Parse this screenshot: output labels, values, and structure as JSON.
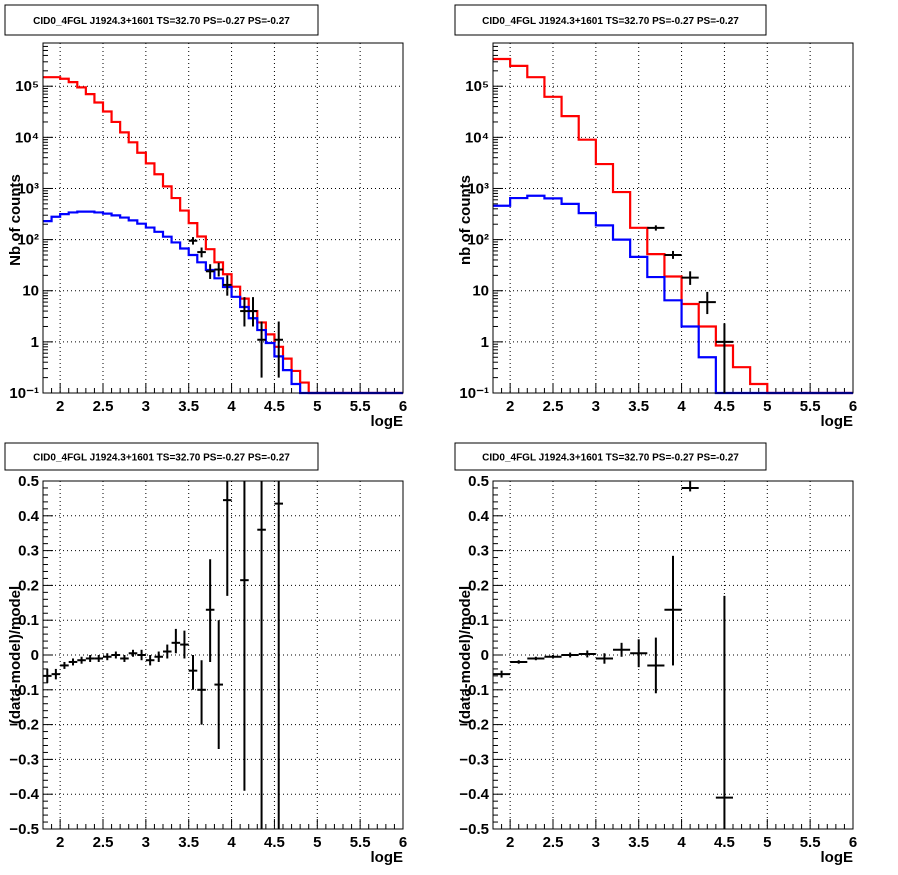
{
  "chart_data": [
    {
      "type": "line",
      "title": "CID0_4FGL J1924.3+1601 TS=32.70 PS=-0.27 PS=-0.27",
      "xlabel": "logE",
      "ylabel": "Nb of counts",
      "xlim": [
        1.8,
        6
      ],
      "ylim": [
        0.1,
        700000
      ],
      "log_y": true,
      "grid": true,
      "x_ticks": [
        2,
        2.5,
        3,
        3.5,
        4,
        4.5,
        5,
        5.5,
        6
      ],
      "x_tick_labels": [
        "2",
        "2.5",
        "3",
        "3.5",
        "4",
        "4.5",
        "5",
        "5.5",
        "6"
      ],
      "y_ticks": [
        0.1,
        1,
        10,
        100,
        1000,
        10000,
        100000
      ],
      "y_tick_labels": [
        "10⁻¹",
        "1",
        "10",
        "10²",
        "10³",
        "10⁴",
        "10⁵"
      ],
      "bin_width": 0.1,
      "x": [
        1.8,
        1.9,
        2.0,
        2.1,
        2.2,
        2.3,
        2.4,
        2.5,
        2.6,
        2.7,
        2.8,
        2.9,
        3.0,
        3.1,
        3.2,
        3.3,
        3.4,
        3.5,
        3.6,
        3.7,
        3.8,
        3.9,
        4.0,
        4.1,
        4.2,
        4.3,
        4.4,
        4.5,
        4.6,
        4.7,
        4.8,
        4.9,
        5.0,
        5.1,
        5.2,
        5.3,
        5.4,
        5.5,
        5.6,
        5.7,
        5.8,
        5.9
      ],
      "series": [
        {
          "color": "#ff0000",
          "style": "step",
          "values": [
            150000,
            150000,
            140000,
            120000,
            95000,
            70000,
            48000,
            32000,
            20000,
            12500,
            8000,
            5000,
            3100,
            1900,
            1100,
            650,
            370,
            210,
            115,
            65,
            36,
            21,
            12,
            7,
            4,
            2.4,
            1.4,
            0.8,
            0.47,
            0.27,
            0.16,
            0.1,
            0,
            0,
            0,
            0,
            0,
            0,
            0,
            0,
            0,
            0
          ]
        },
        {
          "color": "#0000ff",
          "style": "step",
          "values": [
            230,
            280,
            315,
            340,
            352,
            352,
            340,
            322,
            298,
            270,
            238,
            205,
            172,
            142,
            114,
            88,
            67,
            50,
            36,
            25.5,
            17.5,
            11.8,
            7.6,
            4.8,
            2.9,
            1.7,
            0.95,
            0.52,
            0.28,
            0.15,
            0.08,
            0,
            0,
            0,
            0,
            0,
            0,
            0,
            0,
            0,
            0,
            0
          ]
        },
        {
          "color": "#000000",
          "style": "points",
          "points": [
            {
              "x": 3.55,
              "y": 95,
              "ylo": 80,
              "yhi": 112,
              "xw": 0.05
            },
            {
              "x": 3.65,
              "y": 57,
              "ylo": 45,
              "yhi": 70,
              "xw": 0.05
            },
            {
              "x": 3.75,
              "y": 24,
              "ylo": 17,
              "yhi": 33,
              "xw": 0.05
            },
            {
              "x": 3.85,
              "y": 26,
              "ylo": 19,
              "yhi": 35,
              "xw": 0.05
            },
            {
              "x": 3.95,
              "y": 13,
              "ylo": 8,
              "yhi": 20,
              "xw": 0.05
            },
            {
              "x": 4.15,
              "y": 4,
              "ylo": 2,
              "yhi": 7.5,
              "xw": 0.05
            },
            {
              "x": 4.25,
              "y": 4,
              "ylo": 2,
              "yhi": 7.5,
              "xw": 0.05
            },
            {
              "x": 4.35,
              "y": 1.1,
              "ylo": 0.2,
              "yhi": 2.5,
              "xw": 0.05
            },
            {
              "x": 4.55,
              "y": 1.1,
              "ylo": 0.2,
              "yhi": 2.5,
              "xw": 0.05
            }
          ]
        }
      ]
    },
    {
      "type": "line",
      "title": "CID0_4FGL J1924.3+1601 TS=32.70 PS=-0.27 PS=-0.27",
      "xlabel": "logE",
      "ylabel": "nb of counts",
      "xlim": [
        1.8,
        6
      ],
      "ylim": [
        0.1,
        700000
      ],
      "log_y": true,
      "grid": true,
      "x_ticks": [
        2,
        2.5,
        3,
        3.5,
        4,
        4.5,
        5,
        5.5,
        6
      ],
      "x_tick_labels": [
        "2",
        "2.5",
        "3",
        "3.5",
        "4",
        "4.5",
        "5",
        "5.5",
        "6"
      ],
      "y_ticks": [
        0.1,
        1,
        10,
        100,
        1000,
        10000,
        100000
      ],
      "y_tick_labels": [
        "10⁻¹",
        "1",
        "10",
        "10²",
        "10³",
        "10⁴",
        "10⁵"
      ],
      "bin_width": 0.2,
      "x": [
        1.8,
        2.0,
        2.2,
        2.4,
        2.6,
        2.8,
        3.0,
        3.2,
        3.4,
        3.6,
        3.8,
        4.0,
        4.2,
        4.4,
        4.6,
        4.8,
        5.0,
        5.2,
        5.4,
        5.6,
        5.8
      ],
      "series": [
        {
          "color": "#ff0000",
          "style": "step",
          "values": [
            340000,
            250000,
            150000,
            62000,
            26000,
            9000,
            3000,
            850,
            170,
            52,
            19,
            5.5,
            2.0,
            0.85,
            0.32,
            0.15,
            0.1,
            0,
            0,
            0,
            0
          ]
        },
        {
          "color": "#0000ff",
          "style": "step",
          "values": [
            460,
            650,
            720,
            640,
            500,
            330,
            190,
            100,
            46,
            18.5,
            6.5,
            2.0,
            0.5,
            0,
            0,
            0,
            0,
            0,
            0,
            0,
            0
          ]
        },
        {
          "color": "#000000",
          "style": "points",
          "points": [
            {
              "x": 3.7,
              "y": 170,
              "ylo": 150,
              "yhi": 190,
              "xw": 0.1
            },
            {
              "x": 3.9,
              "y": 50,
              "ylo": 42,
              "yhi": 60,
              "xw": 0.1
            },
            {
              "x": 4.1,
              "y": 18,
              "ylo": 13,
              "yhi": 24,
              "xw": 0.1
            },
            {
              "x": 4.3,
              "y": 6,
              "ylo": 3.5,
              "yhi": 9.5,
              "xw": 0.1
            },
            {
              "x": 4.5,
              "y": 1.0,
              "ylo": 0.1,
              "yhi": 2.3,
              "xw": 0.1
            }
          ]
        }
      ]
    },
    {
      "type": "scatter",
      "title": "CID0_4FGL J1924.3+1601 TS=32.70 PS=-0.27 PS=-0.27",
      "xlabel": "logE",
      "ylabel": "(data-model)/model",
      "xlim": [
        1.8,
        6
      ],
      "ylim": [
        -0.5,
        0.5
      ],
      "grid": true,
      "x_ticks": [
        2,
        2.5,
        3,
        3.5,
        4,
        4.5,
        5,
        5.5,
        6
      ],
      "x_tick_labels": [
        "2",
        "2.5",
        "3",
        "3.5",
        "4",
        "4.5",
        "5",
        "5.5",
        "6"
      ],
      "y_ticks": [
        -0.5,
        -0.4,
        -0.3,
        -0.2,
        -0.1,
        0,
        0.1,
        0.2,
        0.3,
        0.4,
        0.5
      ],
      "y_tick_labels": [
        "−0.5",
        "−0.4",
        "−0.3",
        "−0.2",
        "−0.1",
        "0",
        "0.1",
        "0.2",
        "0.3",
        "0.4",
        "0.5"
      ],
      "series": [
        {
          "color": "#000000",
          "points": [
            {
              "x": 1.85,
              "y": -0.06,
              "ylo": -0.08,
              "yhi": -0.04,
              "xw": 0.05
            },
            {
              "x": 1.95,
              "y": -0.055,
              "ylo": -0.07,
              "yhi": -0.04,
              "xw": 0.05
            },
            {
              "x": 2.05,
              "y": -0.03,
              "ylo": -0.04,
              "yhi": -0.02,
              "xw": 0.05
            },
            {
              "x": 2.15,
              "y": -0.02,
              "ylo": -0.03,
              "yhi": -0.01,
              "xw": 0.05
            },
            {
              "x": 2.25,
              "y": -0.015,
              "ylo": -0.025,
              "yhi": -0.005,
              "xw": 0.05
            },
            {
              "x": 2.35,
              "y": -0.01,
              "ylo": -0.02,
              "yhi": 0.0,
              "xw": 0.05
            },
            {
              "x": 2.45,
              "y": -0.01,
              "ylo": -0.02,
              "yhi": 0.0,
              "xw": 0.05
            },
            {
              "x": 2.55,
              "y": -0.005,
              "ylo": -0.015,
              "yhi": 0.005,
              "xw": 0.05
            },
            {
              "x": 2.65,
              "y": 0.0,
              "ylo": -0.01,
              "yhi": 0.01,
              "xw": 0.05
            },
            {
              "x": 2.75,
              "y": -0.01,
              "ylo": -0.02,
              "yhi": 0.0,
              "xw": 0.05
            },
            {
              "x": 2.85,
              "y": 0.005,
              "ylo": -0.005,
              "yhi": 0.015,
              "xw": 0.05
            },
            {
              "x": 2.95,
              "y": 0.0,
              "ylo": -0.015,
              "yhi": 0.015,
              "xw": 0.05
            },
            {
              "x": 3.05,
              "y": -0.015,
              "ylo": -0.03,
              "yhi": 0.0,
              "xw": 0.05
            },
            {
              "x": 3.15,
              "y": -0.005,
              "ylo": -0.02,
              "yhi": 0.01,
              "xw": 0.05
            },
            {
              "x": 3.25,
              "y": 0.01,
              "ylo": -0.01,
              "yhi": 0.03,
              "xw": 0.05
            },
            {
              "x": 3.35,
              "y": 0.035,
              "ylo": 0.005,
              "yhi": 0.075,
              "xw": 0.05
            },
            {
              "x": 3.45,
              "y": 0.03,
              "ylo": -0.01,
              "yhi": 0.07,
              "xw": 0.05
            },
            {
              "x": 3.55,
              "y": -0.045,
              "ylo": -0.1,
              "yhi": 0.0,
              "xw": 0.05
            },
            {
              "x": 3.65,
              "y": -0.1,
              "ylo": -0.2,
              "yhi": -0.015,
              "xw": 0.05
            },
            {
              "x": 3.75,
              "y": 0.13,
              "ylo": -0.02,
              "yhi": 0.275,
              "xw": 0.05
            },
            {
              "x": 3.85,
              "y": -0.085,
              "ylo": -0.27,
              "yhi": 0.1,
              "xw": 0.05
            },
            {
              "x": 3.95,
              "y": 0.445,
              "ylo": 0.17,
              "yhi": 0.5,
              "xw": 0.05
            },
            {
              "x": 4.15,
              "y": 0.215,
              "ylo": -0.39,
              "yhi": 0.5,
              "xw": 0.05
            },
            {
              "x": 4.35,
              "y": 0.36,
              "ylo": -0.5,
              "yhi": 0.5,
              "xw": 0.05
            },
            {
              "x": 4.55,
              "y": 0.435,
              "ylo": -0.5,
              "yhi": 0.5,
              "xw": 0.05
            }
          ]
        }
      ]
    },
    {
      "type": "scatter",
      "title": "CID0_4FGL J1924.3+1601 TS=32.70 PS=-0.27 PS=-0.27",
      "xlabel": "logE",
      "ylabel": "(data-model)/model",
      "xlim": [
        1.8,
        6
      ],
      "ylim": [
        -0.5,
        0.5
      ],
      "grid": true,
      "x_ticks": [
        2,
        2.5,
        3,
        3.5,
        4,
        4.5,
        5,
        5.5,
        6
      ],
      "x_tick_labels": [
        "2",
        "2.5",
        "3",
        "3.5",
        "4",
        "4.5",
        "5",
        "5.5",
        "6"
      ],
      "y_ticks": [
        -0.5,
        -0.4,
        -0.3,
        -0.2,
        -0.1,
        0,
        0.1,
        0.2,
        0.3,
        0.4,
        0.5
      ],
      "y_tick_labels": [
        "−0.5",
        "−0.4",
        "−0.3",
        "−0.2",
        "−0.1",
        "0",
        "0.1",
        "0.2",
        "0.3",
        "0.4",
        "0.5"
      ],
      "series": [
        {
          "color": "#000000",
          "points": [
            {
              "x": 1.9,
              "y": -0.055,
              "ylo": -0.065,
              "yhi": -0.045,
              "xw": 0.1
            },
            {
              "x": 2.1,
              "y": -0.02,
              "ylo": -0.025,
              "yhi": -0.015,
              "xw": 0.1
            },
            {
              "x": 2.3,
              "y": -0.01,
              "ylo": -0.015,
              "yhi": -0.005,
              "xw": 0.1
            },
            {
              "x": 2.5,
              "y": -0.005,
              "ylo": -0.01,
              "yhi": 0.0,
              "xw": 0.1
            },
            {
              "x": 2.7,
              "y": 0.0,
              "ylo": -0.007,
              "yhi": 0.007,
              "xw": 0.1
            },
            {
              "x": 2.9,
              "y": 0.003,
              "ylo": -0.007,
              "yhi": 0.013,
              "xw": 0.1
            },
            {
              "x": 3.1,
              "y": -0.01,
              "ylo": -0.025,
              "yhi": 0.005,
              "xw": 0.1
            },
            {
              "x": 3.3,
              "y": 0.015,
              "ylo": -0.005,
              "yhi": 0.035,
              "xw": 0.1
            },
            {
              "x": 3.5,
              "y": 0.005,
              "ylo": -0.035,
              "yhi": 0.045,
              "xw": 0.1
            },
            {
              "x": 3.7,
              "y": -0.03,
              "ylo": -0.11,
              "yhi": 0.05,
              "xw": 0.1
            },
            {
              "x": 3.9,
              "y": 0.13,
              "ylo": -0.03,
              "yhi": 0.285,
              "xw": 0.1
            },
            {
              "x": 4.1,
              "y": 0.48,
              "ylo": 0.47,
              "yhi": 0.5,
              "xw": 0.1
            },
            {
              "x": 4.5,
              "y": -0.41,
              "ylo": -0.5,
              "yhi": 0.17,
              "xw": 0.1
            }
          ]
        }
      ]
    }
  ]
}
